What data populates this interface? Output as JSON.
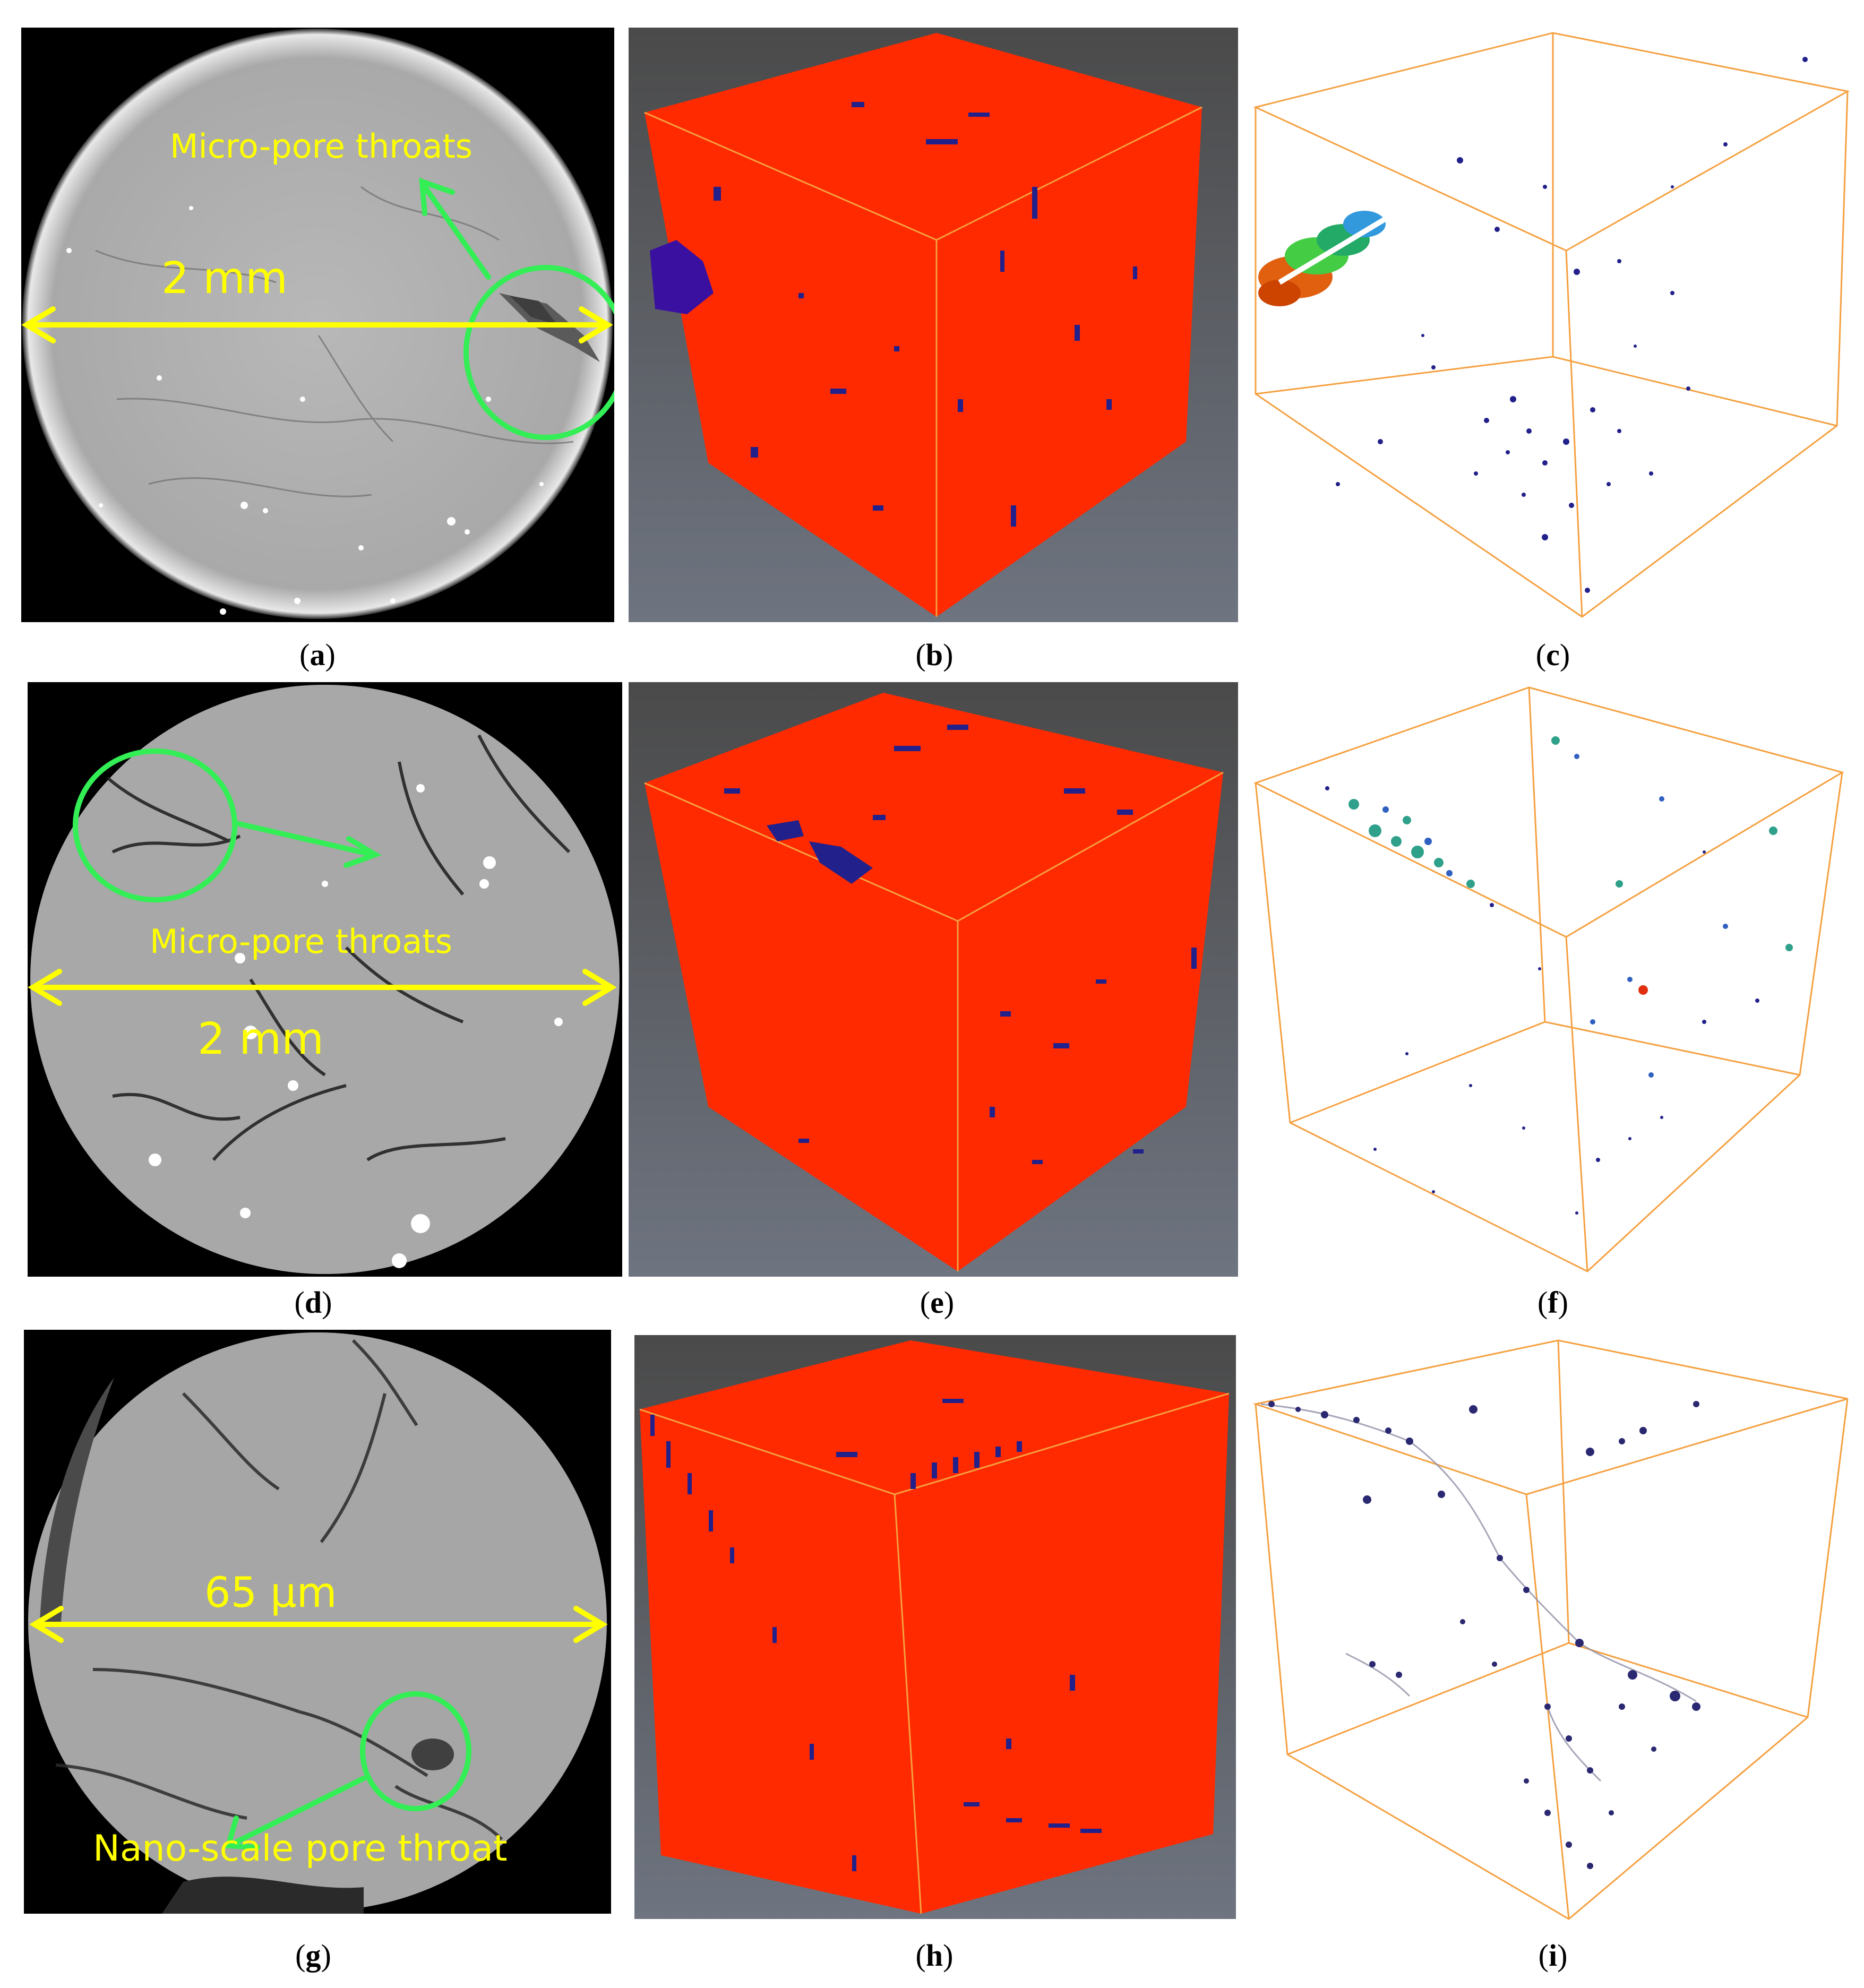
{
  "captions": {
    "a": "a",
    "b": "b",
    "c": "c",
    "d": "d",
    "e": "e",
    "f": "f",
    "g": "g",
    "h": "h",
    "i": "i"
  },
  "panel_a": {
    "label": "Micro-pore throats",
    "scale": "2 mm"
  },
  "panel_d": {
    "label": "Micro-pore throats",
    "scale": "2 mm"
  },
  "panel_g": {
    "label": "Nano-scale pore throat",
    "scale": "65 μm"
  },
  "colors": {
    "cube_red": "#ff2a00",
    "pore_blue": "#22208a",
    "frame_orange": "#f5a040",
    "annotation_yellow": "#ffff00",
    "highlight_green": "#33ee55",
    "render_bg_top": "#4a4a4a",
    "render_bg_bottom": "#6e7480"
  }
}
